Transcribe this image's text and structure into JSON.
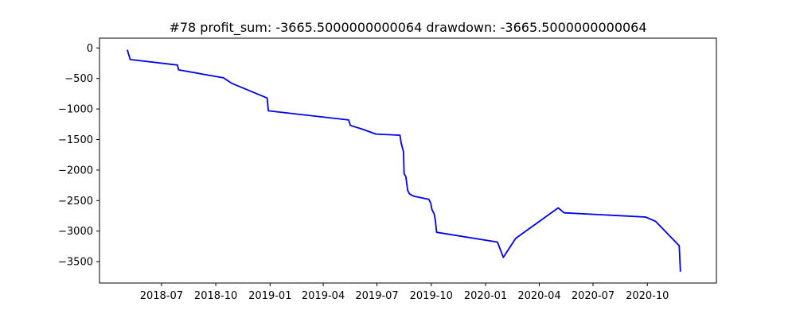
{
  "chart_data": {
    "type": "line",
    "title": "#78   profit_sum: -3665.5000000000064 drawdown: -3665.5000000000064",
    "xlabel": "",
    "ylabel": "",
    "xlim": [
      "2018-03-18",
      "2021-01-26"
    ],
    "ylim": [
      -3850,
      160
    ],
    "grid": false,
    "x_ticks": [
      "2018-07",
      "2018-10",
      "2019-01",
      "2019-04",
      "2019-07",
      "2019-10",
      "2020-01",
      "2020-04",
      "2020-07",
      "2020-10"
    ],
    "y_ticks": [
      0,
      -500,
      -1000,
      -1500,
      -2000,
      -2500,
      -3000,
      -3500
    ],
    "series": [
      {
        "color": "#0000ee",
        "x": [
          "2018-05-04",
          "2018-05-09",
          "2018-07-28",
          "2018-07-30",
          "2018-10-14",
          "2018-10-28",
          "2018-12-27",
          "2018-12-29",
          "2019-05-14",
          "2019-05-17",
          "2019-06-06",
          "2019-06-29",
          "2019-08-09",
          "2019-08-11",
          "2019-08-15",
          "2019-08-16",
          "2019-08-19",
          "2019-08-22",
          "2019-08-25",
          "2019-09-02",
          "2019-09-27",
          "2019-09-30",
          "2019-10-02",
          "2019-10-06",
          "2019-10-08",
          "2019-10-10",
          "2020-01-21",
          "2020-01-31",
          "2020-02-21",
          "2020-05-03",
          "2020-05-13",
          "2020-09-28",
          "2020-10-15",
          "2020-11-24",
          "2020-11-26"
        ],
        "y": [
          -30,
          -190,
          -280,
          -360,
          -490,
          -580,
          -820,
          -1030,
          -1180,
          -1270,
          -1330,
          -1410,
          -1430,
          -1560,
          -1700,
          -2060,
          -2110,
          -2330,
          -2390,
          -2430,
          -2480,
          -2540,
          -2640,
          -2720,
          -2830,
          -3020,
          -3180,
          -3430,
          -3120,
          -2620,
          -2700,
          -2770,
          -2840,
          -3240,
          -3665
        ]
      }
    ]
  }
}
